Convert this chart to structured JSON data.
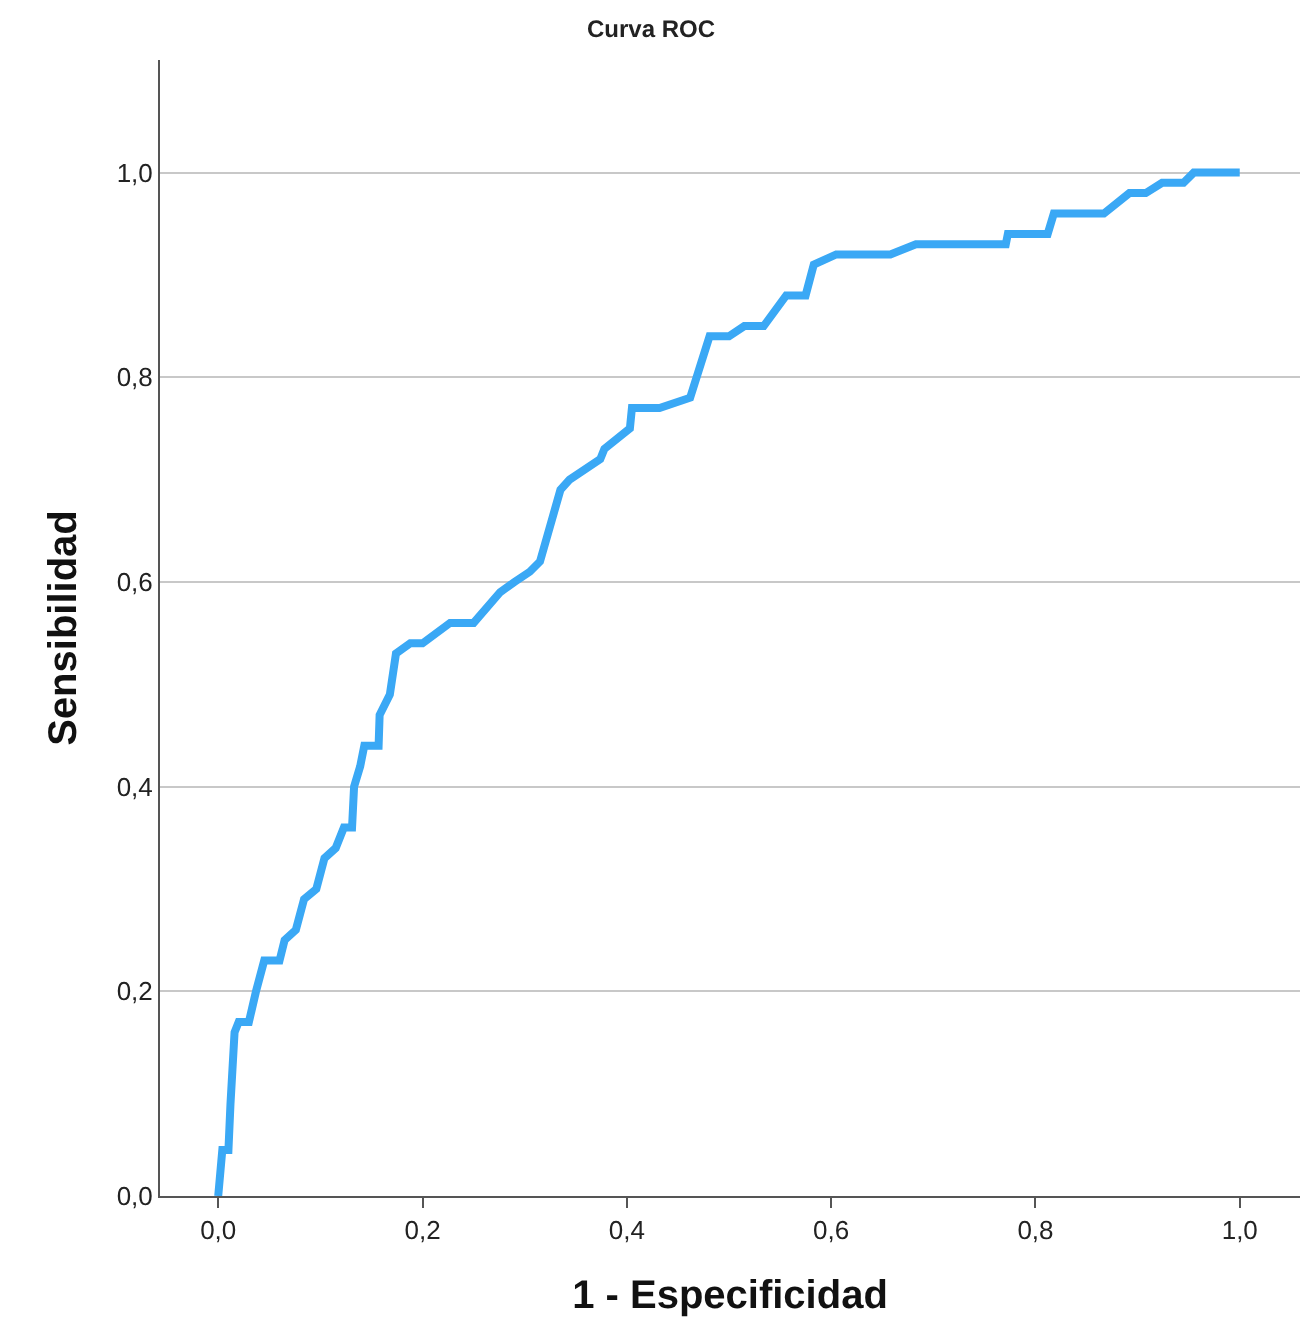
{
  "chart_data": {
    "type": "line",
    "title": "Curva ROC",
    "xlabel": "1 - Especificidad",
    "ylabel": "Sensibilidad",
    "xlim": [
      -0.057,
      1.059
    ],
    "ylim": [
      0,
      1.11
    ],
    "xticks": [
      {
        "value": 0,
        "label": "0,0"
      },
      {
        "value": 0.2,
        "label": "0,2"
      },
      {
        "value": 0.4,
        "label": "0,4"
      },
      {
        "value": 0.6,
        "label": "0,6"
      },
      {
        "value": 0.8,
        "label": "0,8"
      },
      {
        "value": 1,
        "label": "1,0"
      }
    ],
    "yticks": [
      {
        "value": 0,
        "label": "0,0"
      },
      {
        "value": 0.2,
        "label": "0,2"
      },
      {
        "value": 0.4,
        "label": "0,4"
      },
      {
        "value": 0.6,
        "label": "0,6"
      },
      {
        "value": 0.8,
        "label": "0,8"
      },
      {
        "value": 1,
        "label": "1,0"
      }
    ],
    "grid": "y",
    "marker": "none",
    "line_style": "solid",
    "x": [
      0,
      0.004,
      0.01,
      0.012,
      0.016,
      0.02,
      0.03,
      0.037,
      0.045,
      0.06,
      0.065,
      0.076,
      0.084,
      0.096,
      0.104,
      0.115,
      0.123,
      0.131,
      0.133,
      0.139,
      0.143,
      0.157,
      0.158,
      0.168,
      0.174,
      0.188,
      0.2,
      0.227,
      0.25,
      0.276,
      0.29,
      0.305,
      0.315,
      0.335,
      0.344,
      0.374,
      0.378,
      0.403,
      0.405,
      0.432,
      0.462,
      0.481,
      0.5,
      0.515,
      0.534,
      0.556,
      0.575,
      0.583,
      0.605,
      0.658,
      0.683,
      0.771,
      0.773,
      0.812,
      0.818,
      0.867,
      0.892,
      0.908,
      0.924,
      0.945,
      0.955,
      1.0
    ],
    "series": [
      {
        "color": "#3aa8f5",
        "values": [
          0,
          0.045,
          0.045,
          0.09,
          0.16,
          0.17,
          0.17,
          0.2,
          0.23,
          0.23,
          0.25,
          0.26,
          0.29,
          0.3,
          0.33,
          0.34,
          0.36,
          0.36,
          0.4,
          0.42,
          0.44,
          0.44,
          0.47,
          0.49,
          0.53,
          0.54,
          0.54,
          0.56,
          0.56,
          0.59,
          0.6,
          0.61,
          0.62,
          0.69,
          0.7,
          0.72,
          0.73,
          0.75,
          0.77,
          0.77,
          0.78,
          0.84,
          0.84,
          0.85,
          0.85,
          0.88,
          0.88,
          0.91,
          0.92,
          0.92,
          0.93,
          0.93,
          0.94,
          0.94,
          0.96,
          0.96,
          0.98,
          0.98,
          0.99,
          0.99,
          1.0,
          1.0
        ]
      }
    ]
  }
}
